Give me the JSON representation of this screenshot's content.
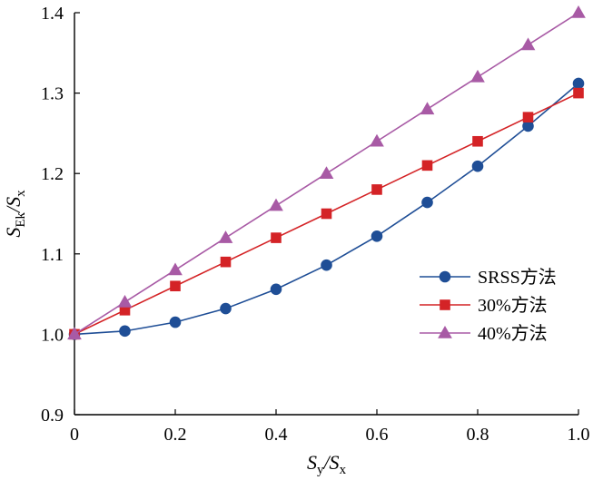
{
  "chart_data": {
    "type": "line",
    "title": "",
    "xlabel": {
      "main": "S",
      "sub": "y",
      "sep": "/",
      "main2": "S",
      "sub2": "x"
    },
    "ylabel": {
      "main": "S",
      "sub": "Ek",
      "sep": "/",
      "main2": "S",
      "sub2": "x"
    },
    "xlim": [
      0,
      1.0
    ],
    "ylim": [
      0.9,
      1.4
    ],
    "xticks": [
      0,
      0.2,
      0.4,
      0.6,
      0.8,
      1.0
    ],
    "xtick_labels": [
      "0",
      "0.2",
      "0.4",
      "0.6",
      "0.8",
      "1.0"
    ],
    "yticks": [
      0.9,
      1.0,
      1.1,
      1.2,
      1.3,
      1.4
    ],
    "ytick_labels": [
      "0.9",
      "1.0",
      "1.1",
      "1.2",
      "1.3",
      "1.4"
    ],
    "grid": false,
    "legend_position": "right",
    "x": [
      0,
      0.1,
      0.2,
      0.3,
      0.4,
      0.5,
      0.6,
      0.7,
      0.8,
      0.9,
      1.0
    ],
    "series": [
      {
        "name": "SRSS方法",
        "color": "#1f4e96",
        "marker": "circle",
        "values": [
          1.0,
          1.004,
          1.015,
          1.032,
          1.056,
          1.086,
          1.122,
          1.164,
          1.209,
          1.259,
          1.312
        ]
      },
      {
        "name": "30%方法",
        "color": "#d42326",
        "marker": "square",
        "values": [
          1.0,
          1.03,
          1.06,
          1.09,
          1.12,
          1.15,
          1.18,
          1.21,
          1.24,
          1.27,
          1.3
        ]
      },
      {
        "name": "40%方法",
        "color": "#a85aa5",
        "marker": "triangle",
        "values": [
          1.0,
          1.04,
          1.08,
          1.12,
          1.16,
          1.2,
          1.24,
          1.28,
          1.32,
          1.36,
          1.4
        ]
      }
    ]
  }
}
